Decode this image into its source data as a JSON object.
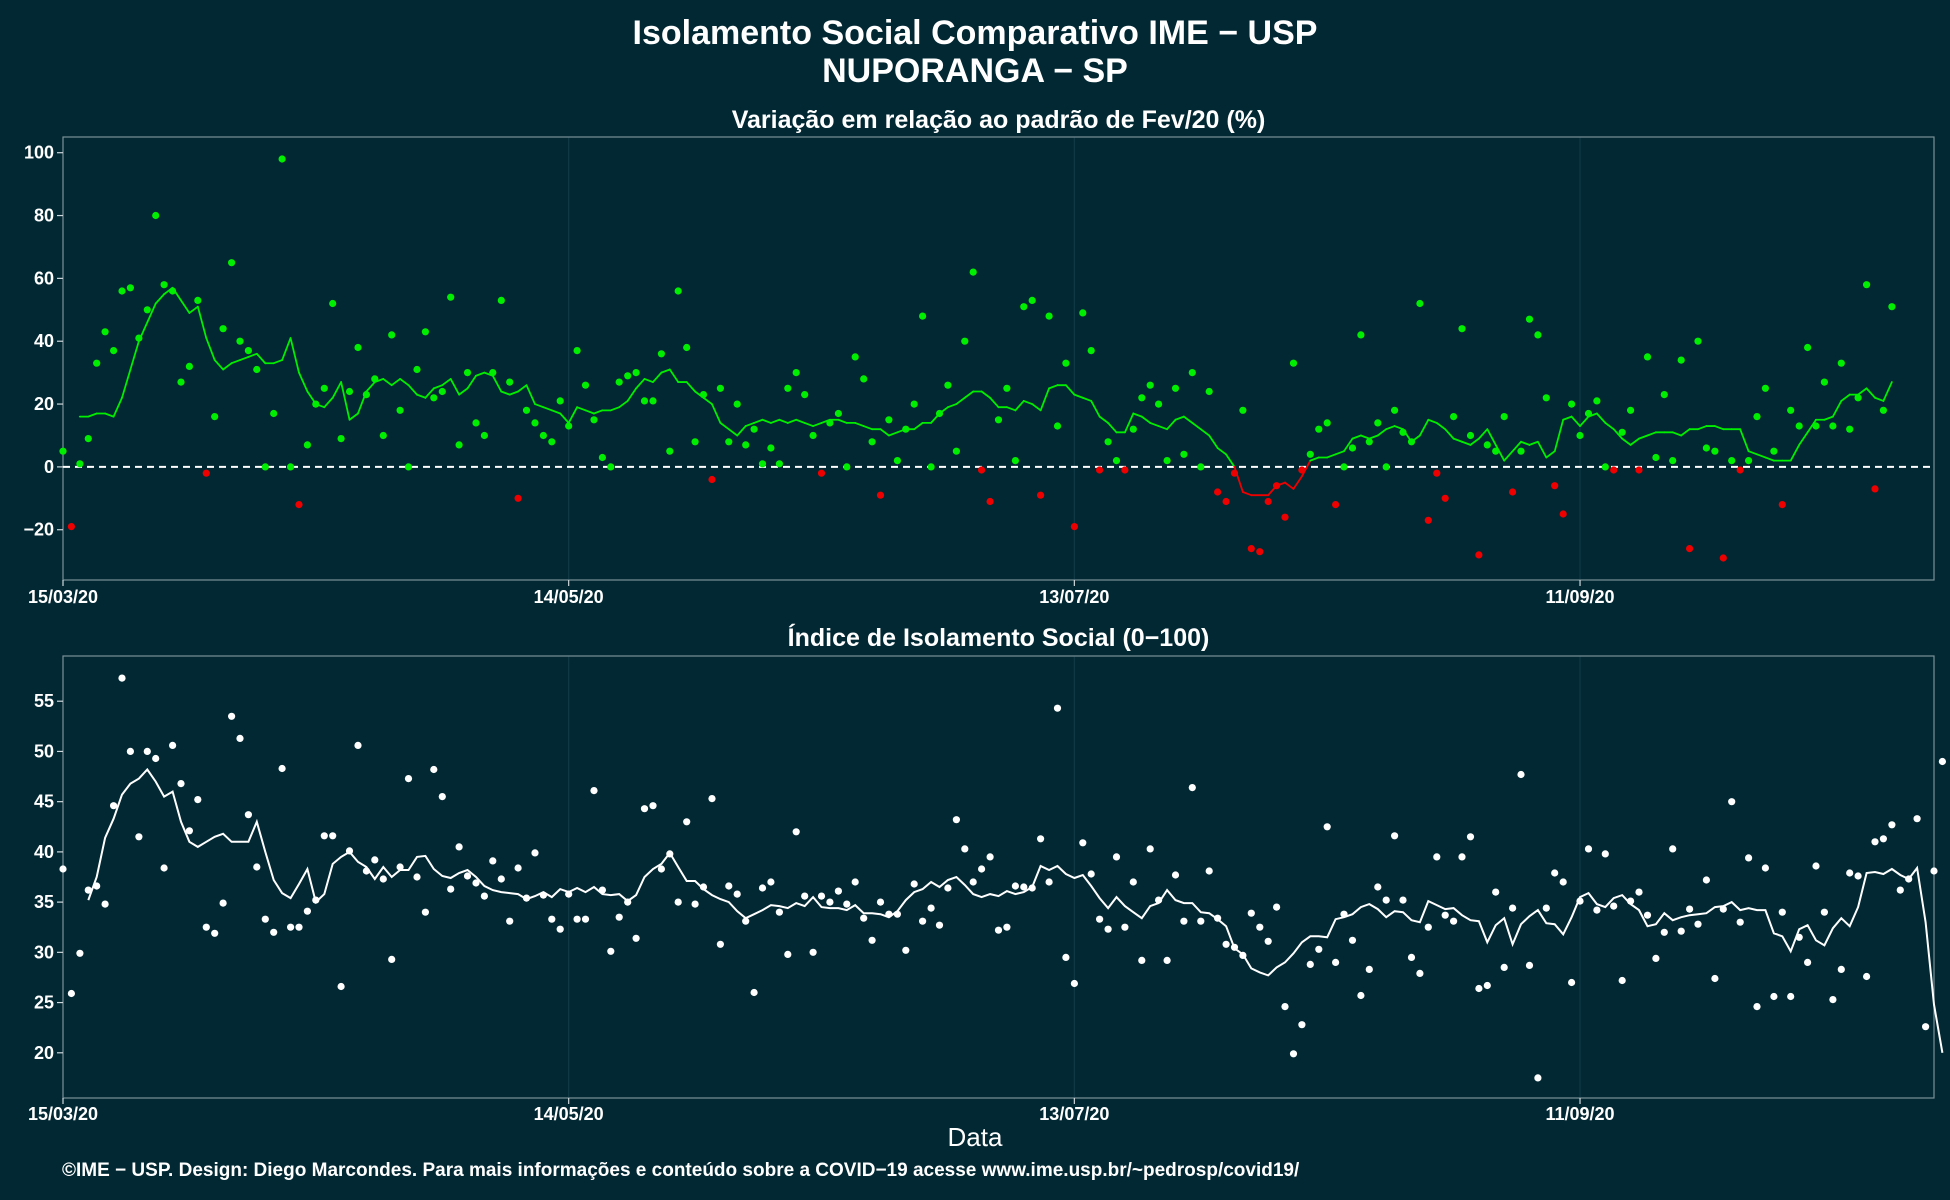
{
  "header": {
    "title": "Isolamento Social Comparativo IME − USP",
    "subtitle": "NUPORANGA − SP"
  },
  "footer": {
    "text": "©IME − USP. Design: Diego Marcondes. Para mais informações e conteúdo sobre a COVID−19 acesse www.ime.usp.br/~pedrosp/covid19/"
  },
  "axis": {
    "xlabel": "Data"
  },
  "colors": {
    "background": "#022833",
    "above": "#00ee00",
    "below": "#ee0000",
    "index": "#ffffff"
  },
  "chart_data": [
    {
      "type": "scatter",
      "title": "Variação em relação ao padrão de Fev/20 (%)",
      "xlabel": "",
      "ylabel": "",
      "x_start": "15/03/20",
      "x_ticks": [
        {
          "label": "15/03/20",
          "day": 0
        },
        {
          "label": "14/05/20",
          "day": 60
        },
        {
          "label": "13/07/20",
          "day": 120
        },
        {
          "label": "11/09/20",
          "day": 180
        }
      ],
      "xlim": [
        0,
        222
      ],
      "ylim": [
        -36,
        105
      ],
      "y_ticks": [
        -20,
        0,
        20,
        40,
        60,
        80,
        100
      ],
      "reference_line": 0,
      "grid": false,
      "points": [
        5,
        -19,
        1,
        9,
        33,
        43,
        37,
        56,
        57,
        41,
        50,
        80,
        58,
        56,
        27,
        32,
        53,
        -2,
        16,
        44,
        65,
        40,
        37,
        31,
        0,
        17,
        98,
        0,
        -12,
        7,
        20,
        25,
        52,
        9,
        24,
        38,
        23,
        28,
        10,
        42,
        18,
        0,
        31,
        43,
        22,
        24,
        54,
        7,
        30,
        14,
        10,
        30,
        53,
        27,
        -10,
        18,
        14,
        10,
        8,
        21,
        13,
        37,
        26,
        15,
        3,
        0,
        27,
        29,
        30,
        21,
        21,
        36,
        5,
        56,
        38,
        8,
        23,
        -4,
        25,
        8,
        20,
        7,
        12,
        1,
        6,
        1,
        25,
        30,
        23,
        10,
        -2,
        14,
        17,
        0,
        35,
        28,
        8,
        -9,
        15,
        2,
        12,
        20,
        48,
        0,
        17,
        26,
        5,
        40,
        62,
        -1,
        -11,
        15,
        25,
        2,
        51,
        53,
        -9,
        48,
        13,
        33,
        -19,
        49,
        37,
        -1,
        8,
        2,
        -1,
        12,
        22,
        26,
        20,
        2,
        25,
        4,
        30,
        0,
        24,
        -8,
        -11,
        -2,
        18,
        -26,
        -27,
        -11,
        -6,
        -16,
        33,
        -1,
        4,
        12,
        14,
        -12,
        0,
        6,
        42,
        8,
        14,
        0,
        18,
        11,
        8,
        52,
        -17,
        -2,
        -10,
        16,
        44,
        10,
        -28,
        7,
        5,
        16,
        -8,
        5,
        47,
        42,
        22,
        -6,
        -15,
        20,
        10,
        17,
        21,
        0,
        -1,
        11,
        18,
        -1,
        35,
        3,
        23,
        2,
        34,
        -26,
        40,
        6,
        5,
        -29,
        2,
        -1,
        2,
        16,
        25,
        5,
        -12,
        18,
        13,
        38,
        13,
        27,
        13,
        33,
        12,
        22,
        58,
        -7,
        18,
        51
      ],
      "moving_average": [
        16,
        16,
        17,
        17,
        16,
        22,
        31,
        40,
        46,
        52,
        55,
        57,
        53,
        49,
        51,
        41,
        34,
        31,
        33,
        34,
        35,
        36,
        33,
        33,
        34,
        41,
        30,
        24,
        20,
        19,
        22,
        27,
        15,
        17,
        24,
        27,
        28,
        26,
        28,
        26,
        23,
        22,
        25,
        26,
        28,
        23,
        25,
        29,
        30,
        29,
        24,
        23,
        24,
        26,
        20,
        19,
        18,
        17,
        14,
        19,
        18,
        17,
        18,
        18,
        19,
        21,
        25,
        28,
        27,
        30,
        31,
        27,
        27,
        24,
        22,
        20,
        14,
        12,
        10,
        13,
        14,
        15,
        14,
        15,
        14,
        15,
        14,
        13,
        14,
        15,
        15,
        14,
        14,
        13,
        12,
        12,
        10,
        11,
        12,
        12,
        14,
        14,
        17,
        19,
        20,
        22,
        24,
        24,
        22,
        19,
        19,
        18,
        21,
        20,
        18,
        25,
        26,
        26,
        23,
        22,
        21,
        16,
        14,
        11,
        11,
        17,
        16,
        14,
        13,
        12,
        15,
        16,
        14,
        12,
        10,
        6,
        4,
        0,
        -8,
        -9,
        -9,
        -9,
        -6,
        -5,
        -7,
        -3,
        2,
        3,
        3,
        4,
        5,
        9,
        10,
        9,
        10,
        12,
        13,
        12,
        8,
        10,
        15,
        14,
        12,
        9,
        8,
        7,
        9,
        12,
        7,
        2,
        5,
        8,
        7,
        8,
        3,
        5,
        15,
        16,
        13,
        16,
        17,
        14,
        12,
        9,
        7,
        9,
        10,
        11,
        11,
        11,
        10,
        12,
        12,
        13,
        13,
        12,
        12,
        12,
        5,
        4,
        3,
        2,
        2,
        2,
        7,
        11,
        15,
        15,
        16,
        21,
        23,
        23,
        25,
        22,
        21,
        27
      ]
    },
    {
      "type": "scatter",
      "title": "Índice de Isolamento Social (0−100)",
      "xlabel": "Data",
      "ylabel": "",
      "x_start": "15/03/20",
      "x_ticks": [
        {
          "label": "15/03/20",
          "day": 0
        },
        {
          "label": "14/05/20",
          "day": 60
        },
        {
          "label": "13/07/20",
          "day": 120
        },
        {
          "label": "11/09/20",
          "day": 180
        }
      ],
      "xlim": [
        0,
        222
      ],
      "ylim": [
        15.5,
        59.5
      ],
      "y_ticks": [
        20,
        25,
        30,
        35,
        40,
        45,
        50,
        55
      ],
      "grid": false,
      "points": [
        38.3,
        25.9,
        29.9,
        36.2,
        36.6,
        34.8,
        44.6,
        57.3,
        50.0,
        41.5,
        50.0,
        49.3,
        38.4,
        50.6,
        46.8,
        42.1,
        45.2,
        32.5,
        31.9,
        34.9,
        53.5,
        51.3,
        43.7,
        38.5,
        33.3,
        32.0,
        48.3,
        32.5,
        32.5,
        34.1,
        35.2,
        41.6,
        41.6,
        26.6,
        40.1,
        50.6,
        38.1,
        39.2,
        37.3,
        29.3,
        38.5,
        47.3,
        37.5,
        34.0,
        48.2,
        45.5,
        36.3,
        40.5,
        37.6,
        36.9,
        35.6,
        39.1,
        37.3,
        33.1,
        38.4,
        35.4,
        39.9,
        35.7,
        33.3,
        32.3,
        35.8,
        33.3,
        33.3,
        46.1,
        36.2,
        30.1,
        33.5,
        35.0,
        31.4,
        44.3,
        44.6,
        38.3,
        39.8,
        35.0,
        43.0,
        34.8,
        36.5,
        45.3,
        30.8,
        36.6,
        35.8,
        33.1,
        26.0,
        36.4,
        37.0,
        34.0,
        29.8,
        42.0,
        35.6,
        30.0,
        35.6,
        35.0,
        36.1,
        34.8,
        37.0,
        33.4,
        31.2,
        35.0,
        33.8,
        33.8,
        30.2,
        36.8,
        33.1,
        34.4,
        32.7,
        36.4,
        43.2,
        40.3,
        37.0,
        38.3,
        39.5,
        32.2,
        32.5,
        36.6,
        36.5,
        36.4,
        41.3,
        37.0,
        54.3,
        29.5,
        26.9,
        40.9,
        37.8,
        33.3,
        32.3,
        39.5,
        32.5,
        37.0,
        29.2,
        40.3,
        35.2,
        29.2,
        37.7,
        33.1,
        46.4,
        33.1,
        38.1,
        33.4,
        30.8,
        30.5,
        29.7,
        33.9,
        32.5,
        31.1,
        34.5,
        24.6,
        19.9,
        22.8,
        28.8,
        30.3,
        42.5,
        29.0,
        33.8,
        31.2,
        25.7,
        28.3,
        36.5,
        35.2,
        41.6,
        35.2,
        29.5,
        27.9,
        32.5,
        39.5,
        33.7,
        33.1,
        39.5,
        41.5,
        26.4,
        26.7,
        36.0,
        28.5,
        34.4,
        47.7,
        28.7,
        17.5,
        34.4,
        37.9,
        37.0,
        27.0,
        35.1,
        40.3,
        34.2,
        39.8,
        34.6,
        27.2,
        35.1,
        36.0,
        33.7,
        29.4,
        32.0,
        40.3,
        32.1,
        34.3,
        32.8,
        37.2,
        27.4,
        34.3,
        45.0,
        33.0,
        39.4,
        24.6,
        38.4,
        25.6,
        34.0,
        25.6,
        31.5,
        29.0,
        38.6,
        34.0,
        25.3,
        28.3,
        37.9,
        37.6,
        27.6,
        41.0,
        41.3,
        42.7,
        36.2,
        37.3,
        43.3,
        22.6,
        38.1,
        49.0
      ],
      "moving_average": [
        35.2,
        37.5,
        41.4,
        43.3,
        45.7,
        46.8,
        47.3,
        48.2,
        47.0,
        45.5,
        46.0,
        43.0,
        41.0,
        40.5,
        41.0,
        41.5,
        41.8,
        41.0,
        41.0,
        41.0,
        43.0,
        40.0,
        37.2,
        35.9,
        35.4,
        36.8,
        38.3,
        35.0,
        35.8,
        38.8,
        39.5,
        40.0,
        39.0,
        38.5,
        37.3,
        38.5,
        37.5,
        38.2,
        38.2,
        39.5,
        39.6,
        38.3,
        37.6,
        37.4,
        37.9,
        38.2,
        37.5,
        36.6,
        36.2,
        36.0,
        35.9,
        35.8,
        35.3,
        35.6,
        36.0,
        35.5,
        36.3,
        36.0,
        36.4,
        36.0,
        36.5,
        35.8,
        35.7,
        35.8,
        35.1,
        35.7,
        37.5,
        38.3,
        38.8,
        39.9,
        38.5,
        37.1,
        37.1,
        36.3,
        35.7,
        35.3,
        35.0,
        34.1,
        33.4,
        33.8,
        34.2,
        34.7,
        34.6,
        34.4,
        34.9,
        34.6,
        35.5,
        34.5,
        34.4,
        34.4,
        34.2,
        34.7,
        33.9,
        33.9,
        33.8,
        33.5,
        34.1,
        35.2,
        36.0,
        36.3,
        37.0,
        36.5,
        37.2,
        37.5,
        36.7,
        35.8,
        35.5,
        35.8,
        35.6,
        36.1,
        35.8,
        36.0,
        36.5,
        38.6,
        38.2,
        38.6,
        37.8,
        37.4,
        37.7,
        36.6,
        35.4,
        34.4,
        35.5,
        34.6,
        34.0,
        33.4,
        34.6,
        34.9,
        36.2,
        35.2,
        34.9,
        34.9,
        34.0,
        33.9,
        33.3,
        32.6,
        30.4,
        29.8,
        28.4,
        28.0,
        27.7,
        28.5,
        29.0,
        29.9,
        31.0,
        31.6,
        31.6,
        31.5,
        33.3,
        33.5,
        33.8,
        34.5,
        34.8,
        34.3,
        33.5,
        34.1,
        34.0,
        33.2,
        33.0,
        35.1,
        34.7,
        34.3,
        34.4,
        33.7,
        33.2,
        33.1,
        31.0,
        32.7,
        33.4,
        30.8,
        32.8,
        33.6,
        34.2,
        32.9,
        32.8,
        31.8,
        33.5,
        35.5,
        35.9,
        34.8,
        34.5,
        35.4,
        35.7,
        34.8,
        34.2,
        32.6,
        32.8,
        33.9,
        33.2,
        33.5,
        33.7,
        33.8,
        33.9,
        34.5,
        34.6,
        35.0,
        34.2,
        34.4,
        34.2,
        34.2,
        31.9,
        31.6,
        30.1,
        32.3,
        32.7,
        31.2,
        30.7,
        32.4,
        33.4,
        32.6,
        34.5,
        37.9,
        38.0,
        37.8,
        38.3,
        37.7,
        37.3,
        38.4,
        33.0,
        24.8,
        20.0
      ]
    }
  ]
}
